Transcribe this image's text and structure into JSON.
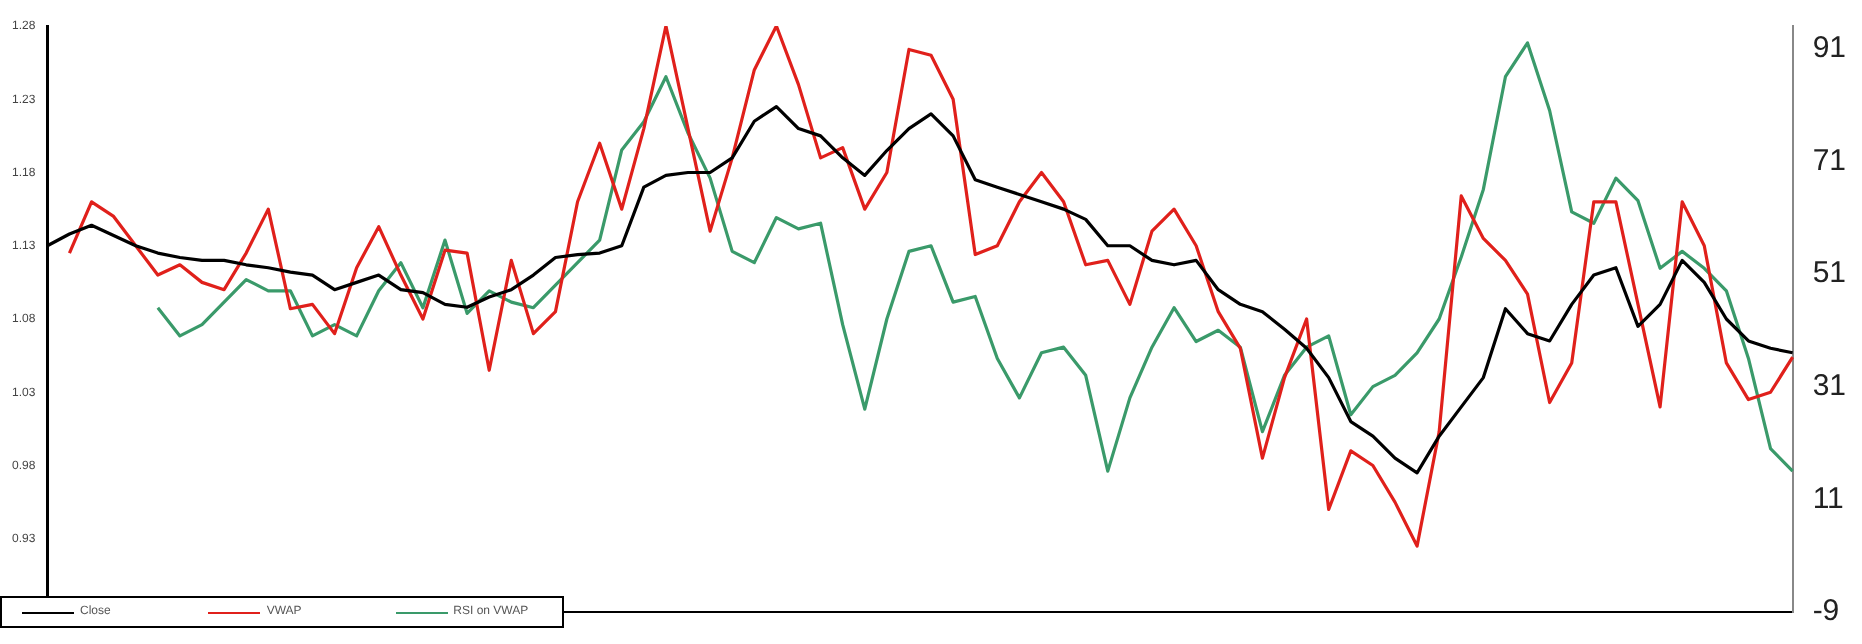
{
  "chart_data": {
    "type": "line",
    "categories": [
      null,
      null,
      null,
      null,
      null,
      null,
      null,
      null,
      null,
      null,
      null,
      null,
      null,
      null,
      null,
      null,
      null,
      null,
      null,
      null,
      null,
      null,
      null,
      null,
      null,
      null,
      null,
      null,
      null,
      null,
      null,
      null,
      null,
      null,
      null,
      null,
      null,
      null,
      null,
      null,
      null,
      null,
      null,
      null,
      null,
      null,
      null,
      null,
      null,
      null,
      null,
      null,
      null,
      null,
      null,
      null,
      null,
      null,
      null,
      null,
      null,
      null,
      null,
      null,
      null,
      null,
      null,
      null,
      null,
      null,
      null,
      null,
      null,
      null,
      null,
      null,
      null,
      null,
      null,
      null
    ],
    "series": [
      {
        "name": "Close",
        "color": "#000000",
        "values": [
          1.13,
          1.138,
          1.144,
          1.137,
          1.13,
          1.125,
          1.122,
          1.12,
          1.12,
          1.117,
          1.115,
          1.112,
          1.11,
          1.1,
          1.105,
          1.11,
          1.1,
          1.098,
          1.09,
          1.088,
          1.095,
          1.1,
          1.11,
          1.122,
          1.124,
          1.125,
          1.13,
          1.17,
          1.178,
          1.18,
          1.18,
          1.19,
          1.215,
          1.225,
          1.21,
          1.205,
          1.19,
          1.178,
          1.195,
          1.21,
          1.22,
          1.205,
          1.175,
          1.17,
          1.165,
          1.16,
          1.155,
          1.148,
          1.13,
          1.13,
          1.12,
          1.117,
          1.12,
          1.1,
          1.09,
          1.085,
          1.073,
          1.06,
          1.04,
          1.01,
          1.0,
          0.985,
          0.975,
          1.0,
          1.02,
          1.04,
          1.087,
          1.07,
          1.065,
          1.09,
          1.11,
          1.115,
          1.075,
          1.09,
          1.12,
          1.105,
          1.08,
          1.065,
          1.06,
          1.057
        ]
      },
      {
        "name": "VWAP",
        "color": "#e0201b",
        "values": [
          null,
          1.125,
          1.16,
          1.15,
          1.13,
          1.11,
          1.117,
          1.105,
          1.1,
          1.125,
          1.155,
          1.087,
          1.09,
          1.07,
          1.115,
          1.143,
          1.11,
          1.08,
          1.127,
          1.125,
          1.045,
          1.12,
          1.07,
          1.085,
          1.16,
          1.2,
          1.155,
          1.21,
          1.28,
          1.21,
          1.14,
          1.19,
          1.25,
          1.28,
          1.24,
          1.19,
          1.197,
          1.155,
          1.18,
          1.264,
          1.26,
          1.23,
          1.124,
          1.13,
          1.16,
          1.18,
          1.16,
          1.117,
          1.12,
          1.09,
          1.14,
          1.155,
          1.13,
          1.085,
          1.06,
          0.985,
          1.04,
          1.08,
          0.95,
          0.99,
          0.98,
          0.955,
          0.925,
          1.003,
          1.164,
          1.135,
          1.12,
          1.097,
          1.023,
          1.05,
          1.16,
          1.16,
          1.09,
          1.02,
          1.16,
          1.13,
          1.05,
          1.025,
          1.03,
          1.054
        ]
      },
      {
        "name": "RSI on VWAP",
        "color": "#3a9a6a",
        "axis": "y2",
        "values": [
          null,
          null,
          null,
          null,
          null,
          45,
          40,
          42,
          46,
          50,
          48,
          48,
          40,
          42,
          40,
          48,
          53,
          45,
          57,
          44,
          48,
          46,
          45,
          49,
          53,
          57,
          73,
          78,
          86,
          76,
          68,
          55,
          53,
          61,
          59,
          60,
          42,
          27,
          43,
          55,
          56,
          46,
          47,
          36,
          29,
          37,
          38,
          33,
          16,
          29,
          38,
          45,
          39,
          41,
          38,
          23,
          33,
          38,
          40,
          26,
          31,
          33,
          37,
          43,
          54,
          66,
          86,
          92,
          80,
          62,
          60,
          68,
          64,
          52,
          55,
          52,
          48,
          36,
          20,
          16
        ]
      }
    ],
    "ylim": [
      0.88,
      1.28
    ],
    "yticks": [
      0.93,
      0.98,
      1.03,
      1.08,
      1.13,
      1.18,
      1.23,
      1.28
    ],
    "y2lim": [
      -9,
      95
    ],
    "y2ticks": [
      -9,
      11,
      31,
      51,
      71,
      91
    ],
    "tick_labels": "y",
    "grid": false,
    "legend": "bottom left",
    "marker": "none",
    "line_style": "solid"
  }
}
